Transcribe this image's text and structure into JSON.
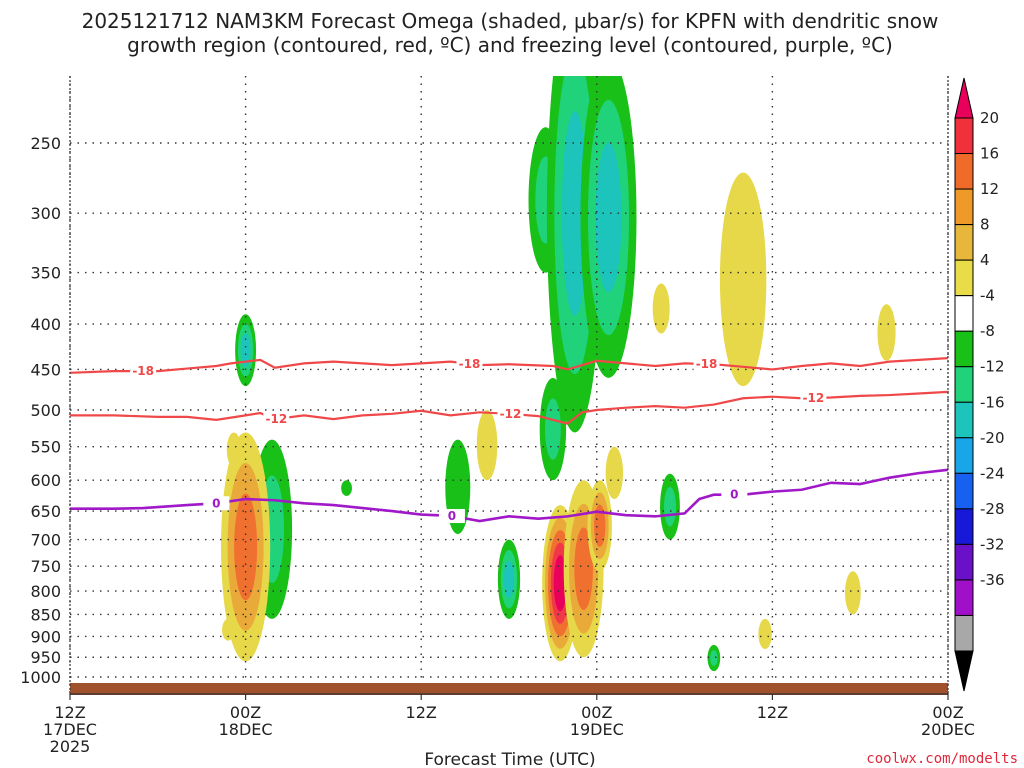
{
  "chart_data": {
    "type": "contour",
    "title_line1": "2025121712 NAM3KM Forecast Omega (shaded, μbar/s) for KPFN with dendritic snow",
    "title_line2": "growth region (contoured, red, ºC) and freezing level (contoured, purple, ºC)",
    "xlabel": "Forecast Time (UTC)",
    "x_range_hours": [
      0,
      60
    ],
    "x_ticks": [
      {
        "hour": 0,
        "line1": "12Z",
        "line2": "17DEC",
        "line3": "2025"
      },
      {
        "hour": 12,
        "line1": "00Z",
        "line2": "18DEC",
        "line3": ""
      },
      {
        "hour": 24,
        "line1": "12Z",
        "line2": "",
        "line3": ""
      },
      {
        "hour": 36,
        "line1": "00Z",
        "line2": "19DEC",
        "line3": ""
      },
      {
        "hour": 48,
        "line1": "12Z",
        "line2": "",
        "line3": ""
      },
      {
        "hour": 60,
        "line1": "00Z",
        "line2": "20DEC",
        "line3": ""
      }
    ],
    "y_ticks_hpa": [
      250,
      300,
      350,
      400,
      450,
      500,
      550,
      600,
      650,
      700,
      750,
      800,
      850,
      900,
      950,
      1000
    ],
    "y_range_hpa": [
      200,
      1025
    ],
    "colorbar": {
      "labels": [
        "20",
        "16",
        "12",
        "8",
        "4",
        "-4",
        "-8",
        "-12",
        "-16",
        "-20",
        "-24",
        "-28",
        "-32",
        "-36"
      ],
      "colors": [
        "#e8005a",
        "#f0303a",
        "#f06a2a",
        "#ef9a28",
        "#e6b73a",
        "#e8dc48",
        "#ffffff",
        "#18c018",
        "#20d27a",
        "#1cc4bc",
        "#18a6e8",
        "#1860f0",
        "#1818d8",
        "#6a10c8",
        "#a010c8",
        "#a8a8a8",
        "#000000"
      ]
    },
    "dgz_contours": [
      {
        "label": "-18",
        "color": "#f04848",
        "points": [
          [
            0,
            454
          ],
          [
            3,
            452
          ],
          [
            6,
            452
          ],
          [
            8,
            449
          ],
          [
            10,
            446
          ],
          [
            11,
            443
          ],
          [
            12,
            441
          ],
          [
            13,
            439
          ],
          [
            14,
            448
          ],
          [
            16,
            443
          ],
          [
            18,
            441
          ],
          [
            20,
            443
          ],
          [
            22,
            445
          ],
          [
            24,
            443
          ],
          [
            26,
            441
          ],
          [
            28,
            445
          ],
          [
            30,
            444
          ],
          [
            33,
            446
          ],
          [
            34,
            450
          ],
          [
            36,
            440
          ],
          [
            38,
            443
          ],
          [
            40,
            446
          ],
          [
            42,
            443
          ],
          [
            44,
            444
          ],
          [
            46,
            447
          ],
          [
            48,
            450
          ],
          [
            50,
            446
          ],
          [
            52,
            443
          ],
          [
            54,
            446
          ],
          [
            56,
            441
          ],
          [
            58,
            439
          ],
          [
            60,
            437
          ]
        ],
        "label_hours": [
          5,
          27.3,
          43.5
        ]
      },
      {
        "label": "-12",
        "color": "#f04848",
        "points": [
          [
            0,
            507
          ],
          [
            3,
            507
          ],
          [
            6,
            509
          ],
          [
            8,
            509
          ],
          [
            10,
            513
          ],
          [
            12,
            507
          ],
          [
            13,
            504
          ],
          [
            14,
            512
          ],
          [
            16,
            507
          ],
          [
            18,
            512
          ],
          [
            20,
            507
          ],
          [
            22,
            505
          ],
          [
            24,
            501
          ],
          [
            26,
            507
          ],
          [
            28,
            503
          ],
          [
            30,
            505
          ],
          [
            32,
            508
          ],
          [
            34,
            518
          ],
          [
            35,
            503
          ],
          [
            36,
            500
          ],
          [
            38,
            497
          ],
          [
            40,
            495
          ],
          [
            42,
            497
          ],
          [
            44,
            493
          ],
          [
            46,
            485
          ],
          [
            48,
            483
          ],
          [
            50,
            485
          ],
          [
            52,
            484
          ],
          [
            54,
            482
          ],
          [
            56,
            481
          ],
          [
            58,
            479
          ],
          [
            60,
            477
          ]
        ],
        "label_hours": [
          14.1,
          30.1,
          50.8
        ]
      }
    ],
    "freezing_level": {
      "label": "0",
      "color": "#a018c8",
      "points": [
        [
          0,
          646
        ],
        [
          3,
          646
        ],
        [
          5,
          645
        ],
        [
          8,
          640
        ],
        [
          10,
          637
        ],
        [
          12,
          630
        ],
        [
          14,
          632
        ],
        [
          16,
          637
        ],
        [
          18,
          640
        ],
        [
          20,
          645
        ],
        [
          22,
          650
        ],
        [
          24,
          656
        ],
        [
          26,
          658
        ],
        [
          28,
          667
        ],
        [
          30,
          659
        ],
        [
          32,
          663
        ],
        [
          34,
          659
        ],
        [
          36,
          651
        ],
        [
          38,
          657
        ],
        [
          40,
          659
        ],
        [
          42,
          654
        ],
        [
          43,
          630
        ],
        [
          44,
          623
        ],
        [
          46,
          623
        ],
        [
          48,
          618
        ],
        [
          50,
          615
        ],
        [
          52,
          604
        ],
        [
          54,
          606
        ],
        [
          56,
          596
        ],
        [
          58,
          589
        ],
        [
          60,
          584
        ]
      ],
      "label_hours": [
        10,
        26.1,
        45.4
      ]
    },
    "omega_features": [
      {
        "hour": 12.0,
        "p_top": 390,
        "p_bot": 470,
        "value": -12
      },
      {
        "hour": 13.8,
        "p_top": 540,
        "p_bot": 860,
        "value": -10
      },
      {
        "hour": 12.0,
        "p_top": 530,
        "p_bot": 960,
        "value": 10
      },
      {
        "hour": 11.2,
        "p_top": 530,
        "p_bot": 580,
        "value": 5
      },
      {
        "hour": 10.8,
        "p_top": 860,
        "p_bot": 910,
        "value": 5
      },
      {
        "hour": 18.9,
        "p_top": 600,
        "p_bot": 625,
        "value": -6
      },
      {
        "hour": 26.5,
        "p_top": 540,
        "p_bot": 690,
        "value": -6
      },
      {
        "hour": 28.5,
        "p_top": 500,
        "p_bot": 600,
        "value": 5
      },
      {
        "hour": 30.0,
        "p_top": 700,
        "p_bot": 860,
        "value": -14
      },
      {
        "hour": 32.5,
        "p_top": 240,
        "p_bot": 350,
        "value": -8
      },
      {
        "hour": 33.0,
        "p_top": 460,
        "p_bot": 600,
        "value": -8
      },
      {
        "hour": 34.5,
        "p_top": 170,
        "p_bot": 530,
        "value": -14
      },
      {
        "hour": 36.8,
        "p_top": 200,
        "p_bot": 460,
        "value": -12
      },
      {
        "hour": 33.5,
        "p_top": 640,
        "p_bot": 960,
        "value": 20
      },
      {
        "hour": 35.1,
        "p_top": 600,
        "p_bot": 950,
        "value": 8
      },
      {
        "hour": 36.2,
        "p_top": 600,
        "p_bot": 760,
        "value": 10
      },
      {
        "hour": 37.2,
        "p_top": 550,
        "p_bot": 630,
        "value": 5
      },
      {
        "hour": 40.4,
        "p_top": 360,
        "p_bot": 410,
        "value": 5
      },
      {
        "hour": 41.0,
        "p_top": 590,
        "p_bot": 700,
        "value": -8
      },
      {
        "hour": 44.0,
        "p_top": 920,
        "p_bot": 985,
        "value": -9
      },
      {
        "hour": 46.0,
        "p_top": 270,
        "p_bot": 470,
        "value": 5
      },
      {
        "hour": 47.5,
        "p_top": 860,
        "p_bot": 930,
        "value": 5
      },
      {
        "hour": 53.5,
        "p_top": 760,
        "p_bot": 850,
        "value": 5
      },
      {
        "hour": 55.8,
        "p_top": 380,
        "p_bot": 440,
        "value": 5
      }
    ],
    "ground_color": "#a0522d"
  },
  "credit": "coolwx.com/modelts"
}
